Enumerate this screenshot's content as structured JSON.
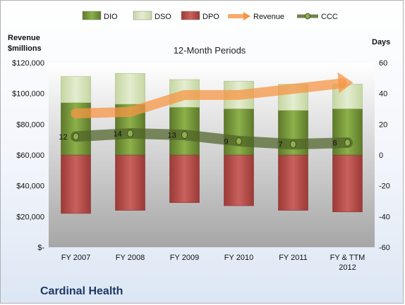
{
  "chart_data": {
    "type": "bar",
    "title": "12-Month Periods",
    "company": "Cardinal Health",
    "categories": [
      "FY 2007",
      "FY 2008",
      "FY 2009",
      "FY 2010",
      "FY 2011",
      "FY & TTM 2012"
    ],
    "left_axis": {
      "label_line1": "Revenue",
      "label_line2": "$millions",
      "ylim": [
        0,
        120000
      ],
      "ticks": [
        "$-",
        "$20,000",
        "$40,000",
        "$60,000",
        "$80,000",
        "$100,000",
        "$120,000"
      ]
    },
    "right_axis": {
      "label": "Days",
      "ylim": [
        -60,
        60
      ],
      "ticks": [
        "-60",
        "-40",
        "-20",
        "0",
        "20",
        "40",
        "60"
      ]
    },
    "series": [
      {
        "name": "DIO",
        "axis": "right",
        "kind": "stacked-bar",
        "values": [
          34,
          33,
          31,
          30,
          29,
          30
        ]
      },
      {
        "name": "DSO",
        "axis": "right",
        "kind": "stacked-bar",
        "values": [
          17,
          20,
          18,
          18,
          17,
          16
        ]
      },
      {
        "name": "DPO",
        "axis": "right",
        "kind": "negative-bar",
        "values": [
          -38,
          -36,
          -31,
          -33,
          -36,
          -37
        ]
      },
      {
        "name": "Revenue",
        "axis": "left",
        "kind": "arrow-line",
        "values": [
          87000,
          88000,
          99000,
          99000,
          103000,
          107000
        ]
      },
      {
        "name": "CCC",
        "axis": "right",
        "kind": "line",
        "values": [
          12,
          14,
          13,
          9,
          7,
          8
        ]
      }
    ],
    "ccc_labels": [
      "12",
      "14",
      "13",
      "9",
      "7",
      "8"
    ],
    "colors": {
      "DIO": "#77933c",
      "DSO": "#d7e4bd",
      "DPO": "#c0504d",
      "Revenue": "#f79646",
      "CCC": "#4f6228",
      "plot_top": "#ffffff",
      "plot_bottom": "#a6a6a6"
    }
  }
}
